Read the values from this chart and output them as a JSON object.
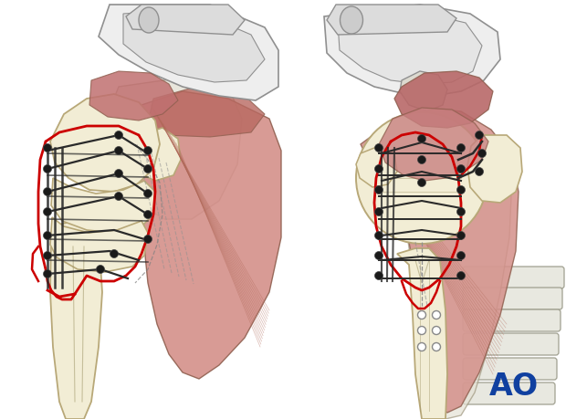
{
  "background_color": "#ffffff",
  "figure_width": 6.2,
  "figure_height": 4.59,
  "dpi": 100,
  "ao_text": "AO",
  "ao_color": "#1040A0",
  "ao_fontsize": 24,
  "bone_color": "#F2EDD5",
  "bone_edge": "#B8A878",
  "bone_edge2": "#999060",
  "acromion_color": "#E8E8E8",
  "acromion_edge": "#909090",
  "muscle_color_light": "#D4908A",
  "muscle_color_mid": "#C07870",
  "muscle_color_dark": "#A06050",
  "muscle_edge": "#906050",
  "fracture_color": "#CC0000",
  "wire_color": "#2A2A2A",
  "knot_color": "#1A1A1A",
  "dash_color": "#AAAAAA",
  "rib_color": "#E8E8E0",
  "rib_edge": "#A0A090",
  "scapula_color": "#E5E2D5",
  "scapula_edge": "#A09880"
}
